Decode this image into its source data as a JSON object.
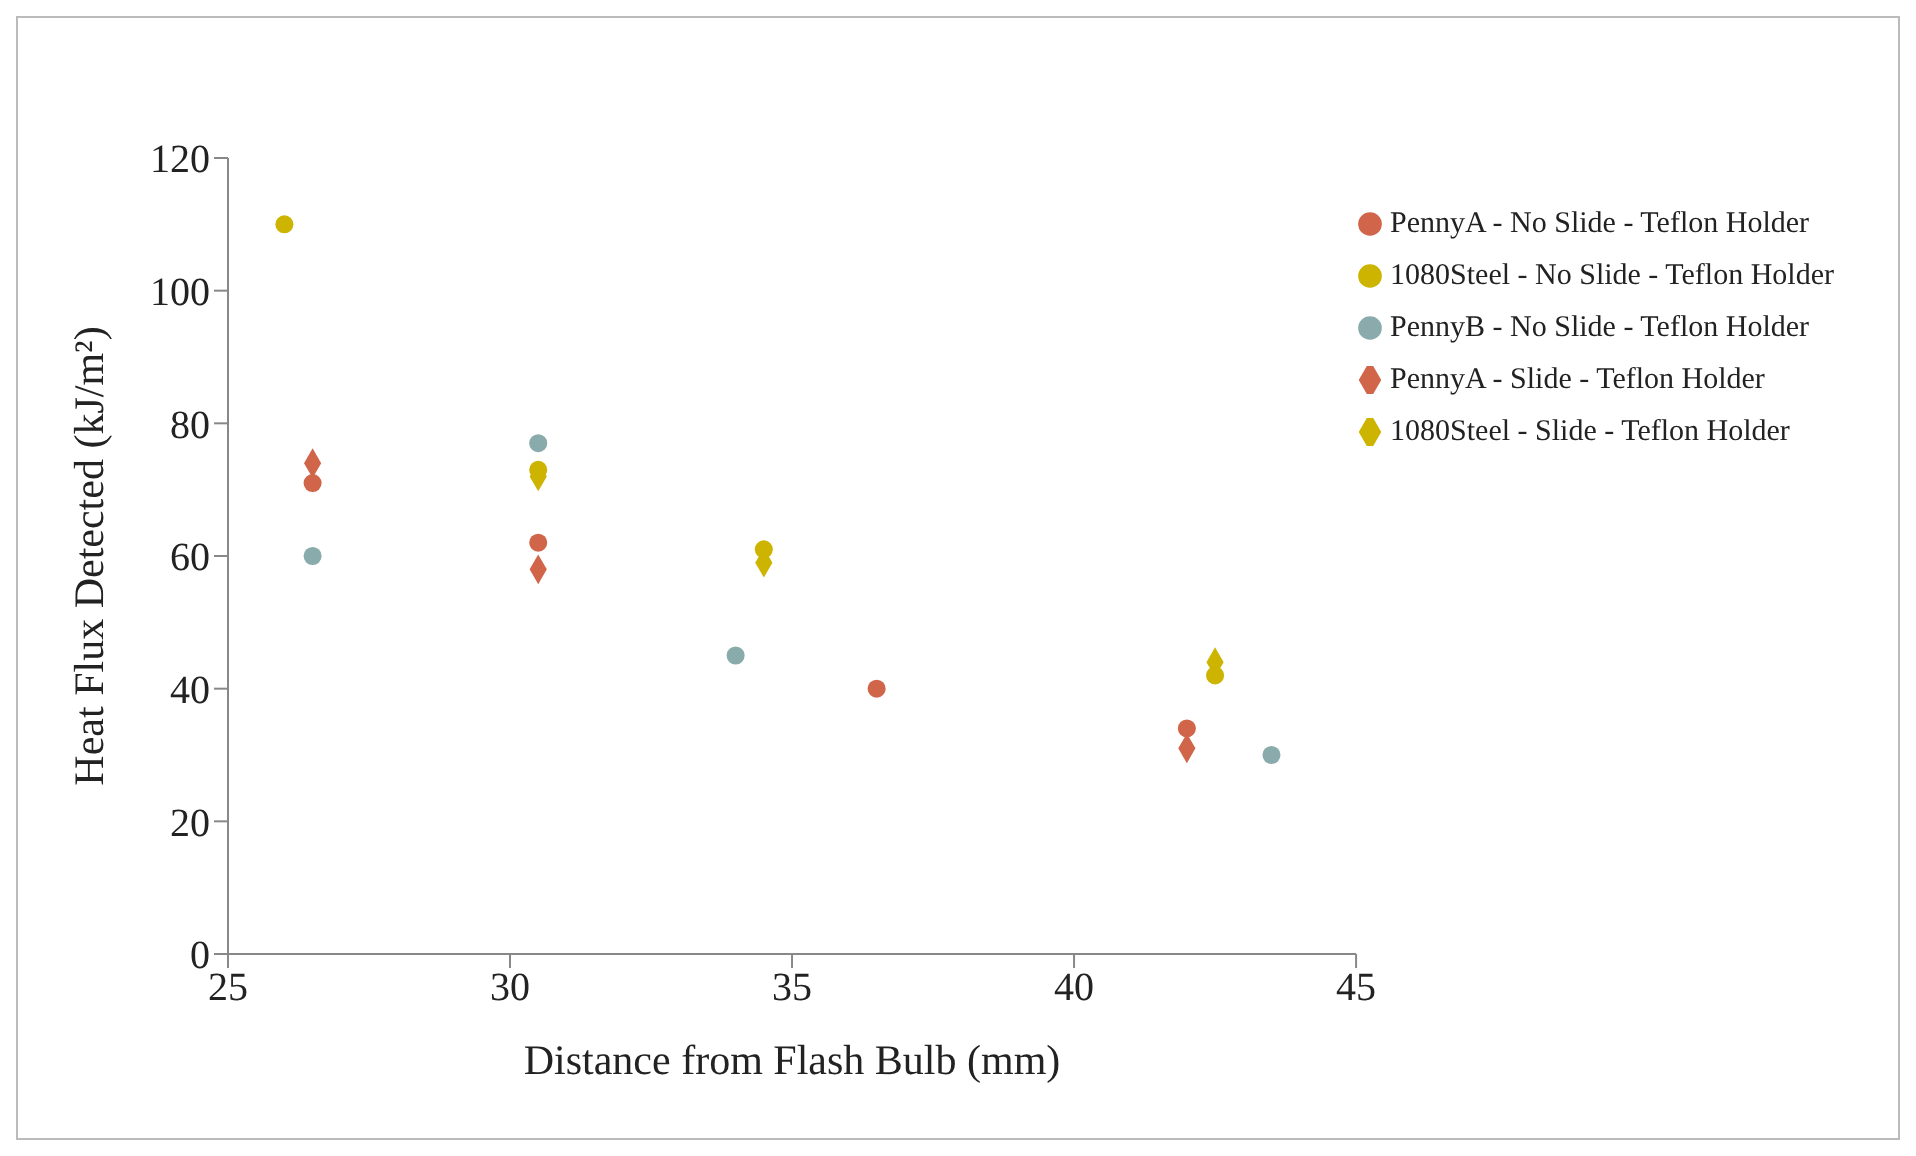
{
  "chart_data": {
    "type": "scatter",
    "xlabel": "Distance from Flash Bulb (mm)",
    "ylabel": "Heat Flux Detected (kJ/m²)",
    "xlim": [
      25,
      45
    ],
    "xticks": [
      25,
      30,
      35,
      40,
      45
    ],
    "ylim": [
      0,
      120
    ],
    "yticks": [
      0,
      20,
      40,
      60,
      80,
      100,
      120
    ],
    "grid": false,
    "legend": "top right",
    "series": [
      {
        "name": "PennyA - No Slide - Teflon Holder",
        "color": "#d0654a",
        "marker": "circle",
        "x": [
          26.5,
          30.5,
          36.5,
          42
        ],
        "values": [
          71,
          62,
          40,
          34
        ]
      },
      {
        "name": "1080Steel - No Slide - Teflon Holder",
        "color": "#ccb400",
        "marker": "circle",
        "x": [
          26,
          30.5,
          34.5,
          42.5
        ],
        "values": [
          110,
          73,
          61,
          42
        ]
      },
      {
        "name": "PennyB - No Slide - Teflon Holder",
        "color": "#8aabab",
        "marker": "circle",
        "x": [
          26.5,
          30.5,
          34,
          43.5
        ],
        "values": [
          60,
          77,
          45,
          30
        ]
      },
      {
        "name": "PennyA - Slide - Teflon Holder",
        "color": "#d0654a",
        "marker": "diamond",
        "x": [
          26.5,
          30.5,
          42
        ],
        "values": [
          74,
          58,
          31
        ]
      },
      {
        "name": "1080Steel - Slide - Teflon Holder",
        "color": "#ccb400",
        "marker": "diamond",
        "x": [
          30.5,
          34.5,
          42.5
        ],
        "values": [
          72,
          59,
          44
        ]
      }
    ]
  }
}
